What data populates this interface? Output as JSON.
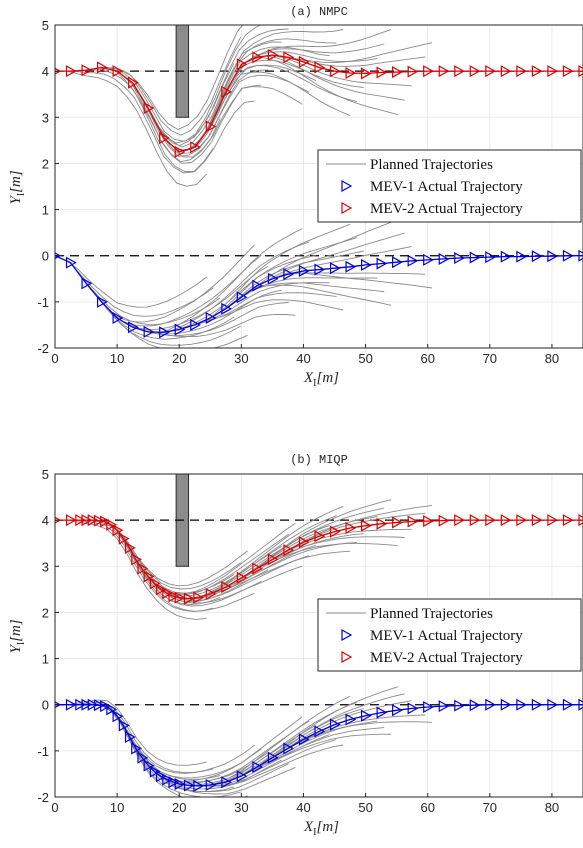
{
  "chart_data": [
    {
      "type": "line",
      "title": "(a) NMPC",
      "xlabel": "X_I[m]",
      "ylabel": "Y_I[m]",
      "xlim": [
        0,
        85
      ],
      "ylim": [
        -2,
        5
      ],
      "xticks": [
        "0",
        "10",
        "20",
        "30",
        "40",
        "50",
        "60",
        "70",
        "80"
      ],
      "yticks": [
        "-2",
        "-1",
        "0",
        "1",
        "2",
        "3",
        "4",
        "5"
      ],
      "grid": true,
      "legend_position": "right",
      "obstacle": {
        "x": [
          19.5,
          21.5
        ],
        "y": [
          3,
          5
        ]
      },
      "reference_lines": [
        4,
        0
      ],
      "legend": [
        "Planned Trajectories",
        "MEV-1 Actual Trajectory",
        "MEV-2 Actual Trajectory"
      ],
      "series": [
        {
          "name": "MEV-2 Actual Trajectory",
          "color": "#e00000",
          "x": [
            0,
            2.5,
            5,
            7.5,
            10,
            12.5,
            15,
            17.5,
            20,
            22.5,
            25,
            27.5,
            30,
            32.5,
            35,
            37.5,
            40,
            42.5,
            45,
            47.5,
            50,
            52.5,
            55,
            57.5,
            60,
            62.5,
            65,
            67.5,
            70,
            72.5,
            75,
            77.5,
            80,
            82.5,
            85
          ],
          "y": [
            4.0,
            4.0,
            4.02,
            4.08,
            4.0,
            3.75,
            3.2,
            2.55,
            2.25,
            2.35,
            2.8,
            3.55,
            4.15,
            4.3,
            4.35,
            4.3,
            4.2,
            4.08,
            4.0,
            3.96,
            3.95,
            3.97,
            3.98,
            3.99,
            4.0,
            4.0,
            4.0,
            4.0,
            4.0,
            4.0,
            4.0,
            4.0,
            4.0,
            4.0,
            4.0
          ]
        },
        {
          "name": "MEV-1 Actual Trajectory",
          "color": "#0000e0",
          "x": [
            0,
            2.5,
            5,
            7.5,
            10,
            12.5,
            15,
            17.5,
            20,
            22.5,
            25,
            27.5,
            30,
            32.5,
            35,
            37.5,
            40,
            42.5,
            45,
            47.5,
            50,
            52.5,
            55,
            57.5,
            60,
            62.5,
            65,
            67.5,
            70,
            72.5,
            75,
            77.5,
            80,
            82.5,
            85
          ],
          "y": [
            0.0,
            -0.15,
            -0.6,
            -1.0,
            -1.35,
            -1.55,
            -1.65,
            -1.66,
            -1.6,
            -1.5,
            -1.35,
            -1.15,
            -0.9,
            -0.65,
            -0.5,
            -0.4,
            -0.33,
            -0.3,
            -0.27,
            -0.24,
            -0.2,
            -0.17,
            -0.14,
            -0.11,
            -0.09,
            -0.07,
            -0.05,
            -0.04,
            -0.03,
            -0.02,
            -0.02,
            -0.01,
            -0.01,
            0.0,
            0.0
          ]
        }
      ]
    },
    {
      "type": "line",
      "title": "(b) MIQP",
      "xlabel": "X_I[m]",
      "ylabel": "Y_I[m]",
      "xlim": [
        0,
        85
      ],
      "ylim": [
        -2,
        5
      ],
      "xticks": [
        "0",
        "10",
        "20",
        "30",
        "40",
        "50",
        "60",
        "70",
        "80"
      ],
      "yticks": [
        "-2",
        "-1",
        "0",
        "1",
        "2",
        "3",
        "4",
        "5"
      ],
      "grid": true,
      "legend_position": "right",
      "obstacle": {
        "x": [
          19.5,
          21.5
        ],
        "y": [
          3,
          5
        ]
      },
      "reference_lines": [
        4,
        0
      ],
      "legend": [
        "Planned Trajectories",
        "MEV-1 Actual Trajectory",
        "MEV-2 Actual Trajectory"
      ],
      "series": [
        {
          "name": "MEV-2 Actual Trajectory",
          "color": "#e00000",
          "x": [
            0,
            2.5,
            4,
            5,
            6,
            7,
            8,
            9,
            10,
            11,
            12,
            13,
            14,
            15,
            16,
            17,
            18,
            19,
            20,
            21.5,
            23,
            25,
            27.5,
            30,
            32.5,
            35,
            37.5,
            40,
            42.5,
            45,
            47.5,
            50,
            52.5,
            55,
            57.5,
            60,
            62.5,
            65,
            67.5,
            70,
            72.5,
            75,
            77.5,
            80,
            82.5,
            85
          ],
          "y": [
            4.0,
            4.0,
            4.0,
            4.0,
            4.0,
            3.99,
            3.97,
            3.9,
            3.78,
            3.6,
            3.4,
            3.15,
            2.95,
            2.78,
            2.63,
            2.5,
            2.42,
            2.35,
            2.32,
            2.3,
            2.32,
            2.4,
            2.55,
            2.75,
            2.95,
            3.15,
            3.35,
            3.52,
            3.65,
            3.75,
            3.83,
            3.88,
            3.92,
            3.95,
            3.97,
            3.98,
            3.99,
            4.0,
            4.0,
            4.0,
            4.0,
            4.0,
            4.0,
            4.0,
            4.0,
            4.0
          ]
        },
        {
          "name": "MEV-1 Actual Trajectory",
          "color": "#0000e0",
          "x": [
            0,
            2.5,
            4,
            5,
            6,
            7,
            8,
            9,
            10,
            11,
            12,
            13,
            14,
            15,
            16,
            17,
            18,
            19,
            20,
            21.5,
            23,
            25,
            27.5,
            30,
            32.5,
            35,
            37.5,
            40,
            42.5,
            45,
            47.5,
            50,
            52.5,
            55,
            57.5,
            60,
            62.5,
            65,
            67.5,
            70,
            72.5,
            75,
            77.5,
            80,
            82.5,
            85
          ],
          "y": [
            0.0,
            0.0,
            0.0,
            0.0,
            0.0,
            -0.01,
            -0.03,
            -0.1,
            -0.25,
            -0.45,
            -0.7,
            -0.95,
            -1.15,
            -1.32,
            -1.45,
            -1.55,
            -1.62,
            -1.68,
            -1.72,
            -1.75,
            -1.76,
            -1.74,
            -1.68,
            -1.55,
            -1.35,
            -1.15,
            -0.95,
            -0.75,
            -0.58,
            -0.43,
            -0.32,
            -0.24,
            -0.17,
            -0.12,
            -0.08,
            -0.05,
            -0.03,
            -0.02,
            -0.01,
            0.0,
            0.0,
            0.0,
            0.0,
            0.0,
            0.0,
            0.0
          ]
        }
      ]
    }
  ]
}
